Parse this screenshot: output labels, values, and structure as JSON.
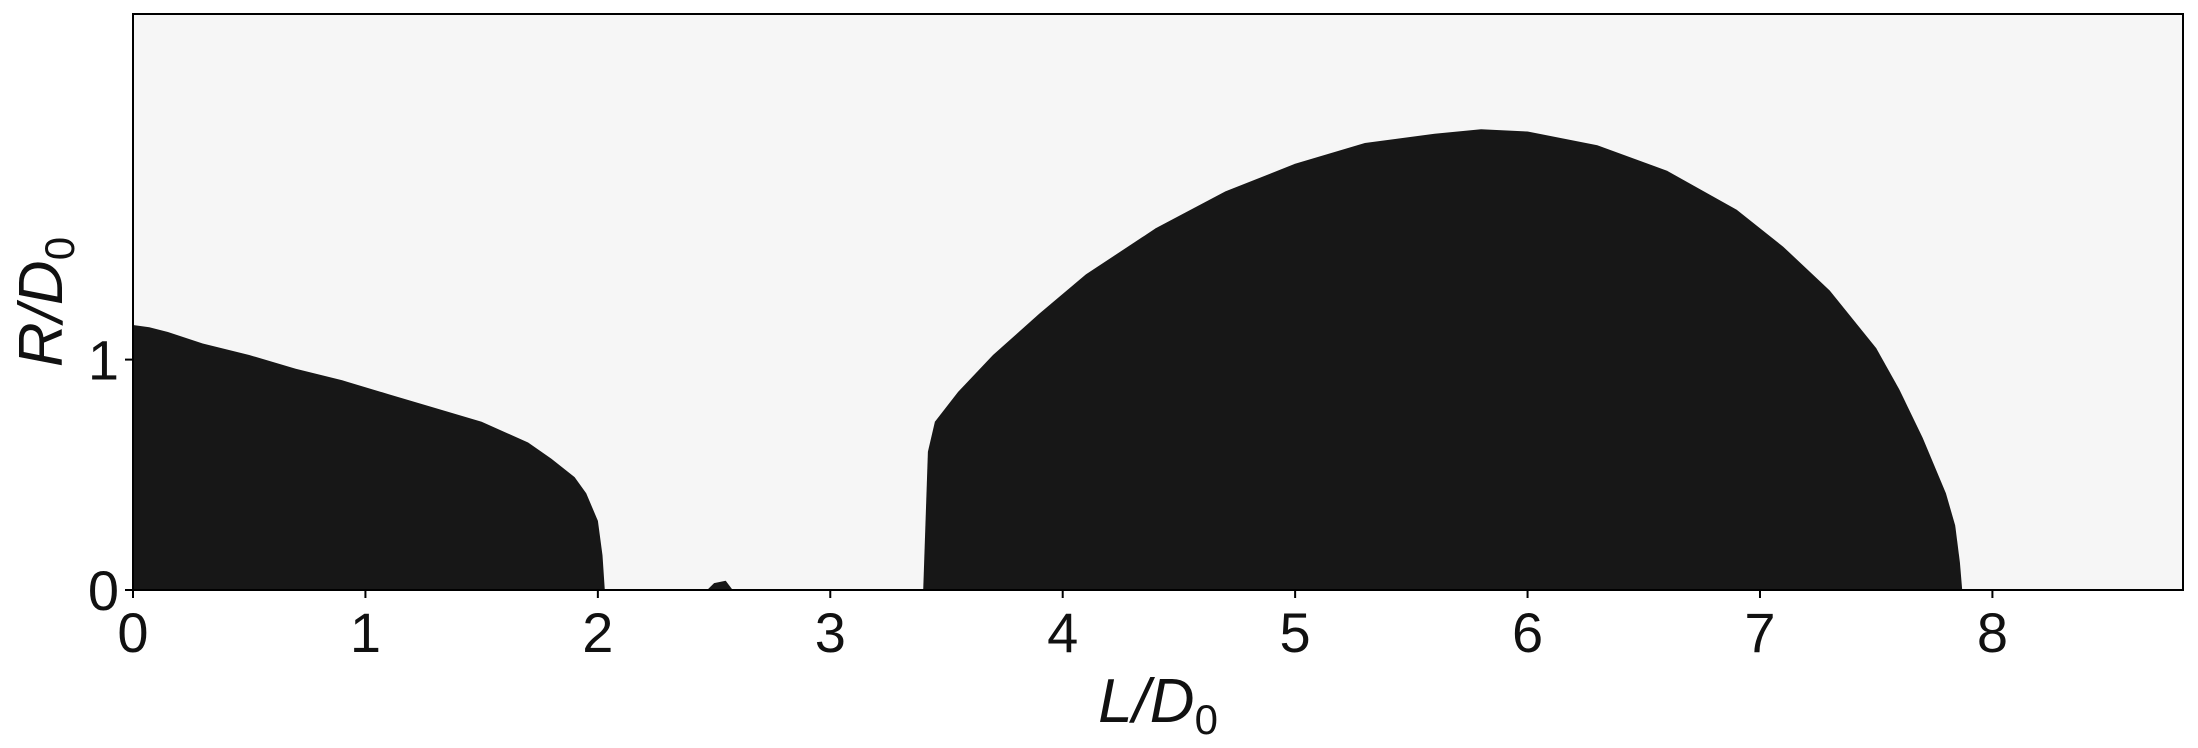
{
  "chart_data": {
    "type": "area",
    "xlabel": {
      "main": "L/D",
      "sub": "0"
    },
    "ylabel": {
      "main": "R/D",
      "sub": "0"
    },
    "xlim": [
      0,
      8.82
    ],
    "ylim": [
      0,
      2.5
    ],
    "x_ticks": [
      "0",
      "1",
      "2",
      "3",
      "4",
      "5",
      "6",
      "7",
      "8"
    ],
    "y_ticks": [
      "0",
      "1"
    ],
    "grid": false,
    "colors": {
      "region": "#171717",
      "background": "#f6f6f6",
      "frame": "#000000"
    },
    "series": [
      {
        "x": [
          0,
          0.07,
          0.15,
          0.3,
          0.5,
          0.7,
          0.9,
          1.1,
          1.3,
          1.5,
          1.7,
          1.8,
          1.9,
          1.95,
          2.0,
          2.02,
          2.03
        ],
        "y": [
          1.15,
          1.14,
          1.12,
          1.07,
          1.02,
          0.96,
          0.91,
          0.85,
          0.79,
          0.73,
          0.64,
          0.57,
          0.49,
          0.42,
          0.3,
          0.15,
          0
        ]
      },
      {
        "x": [
          2.47,
          2.5,
          2.55,
          2.58
        ],
        "y": [
          0,
          0.03,
          0.04,
          0
        ]
      },
      {
        "x": [
          3.4,
          3.42,
          3.45,
          3.55,
          3.7,
          3.9,
          4.1,
          4.4,
          4.7,
          5.0,
          5.3,
          5.6,
          5.8,
          6.0,
          6.3,
          6.6,
          6.9,
          7.1,
          7.3,
          7.5,
          7.6,
          7.7,
          7.8,
          7.84,
          7.86,
          7.87
        ],
        "y": [
          0,
          0.6,
          0.73,
          0.86,
          1.02,
          1.2,
          1.37,
          1.57,
          1.73,
          1.85,
          1.94,
          1.98,
          2.0,
          1.99,
          1.93,
          1.82,
          1.65,
          1.49,
          1.3,
          1.05,
          0.87,
          0.66,
          0.42,
          0.28,
          0.12,
          0
        ]
      }
    ]
  }
}
